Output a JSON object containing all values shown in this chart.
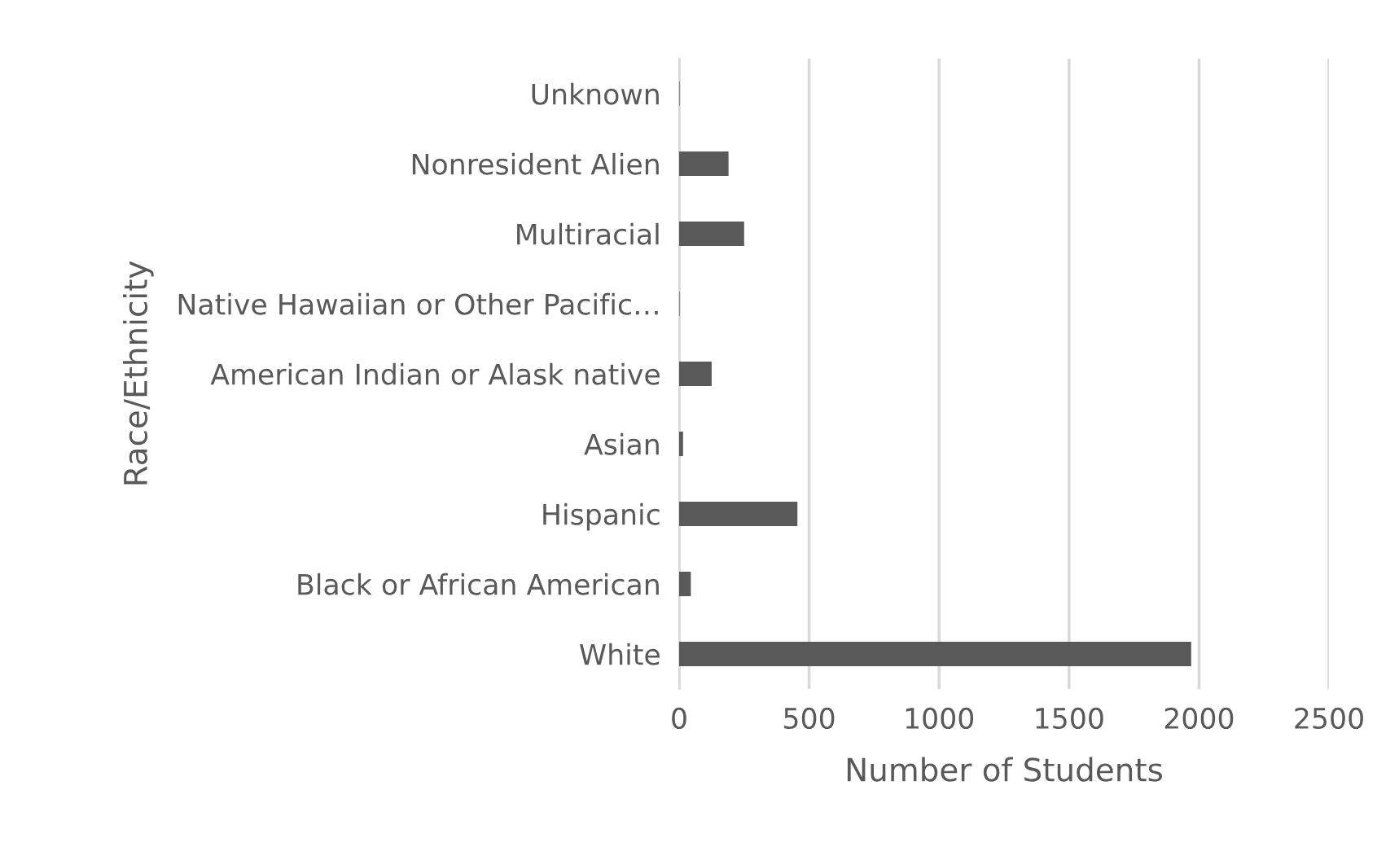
{
  "chart_data": {
    "type": "bar",
    "orientation": "horizontal",
    "xlabel": "Number of Students",
    "ylabel": "Race/Ethnicity",
    "categories": [
      "Unknown",
      "Nonresident Alien",
      "Multiracial",
      "Native Hawaiian or Other Pacific…",
      "American Indian or Alask native",
      "Asian",
      "Hispanic",
      "Black or African American",
      "White"
    ],
    "values": [
      2,
      190,
      250,
      2,
      125,
      15,
      455,
      45,
      1970
    ],
    "color": "#595959",
    "xlim": [
      0,
      2500
    ],
    "xticks": [
      0,
      500,
      1000,
      1500,
      2000,
      2500
    ],
    "grid": "x"
  }
}
